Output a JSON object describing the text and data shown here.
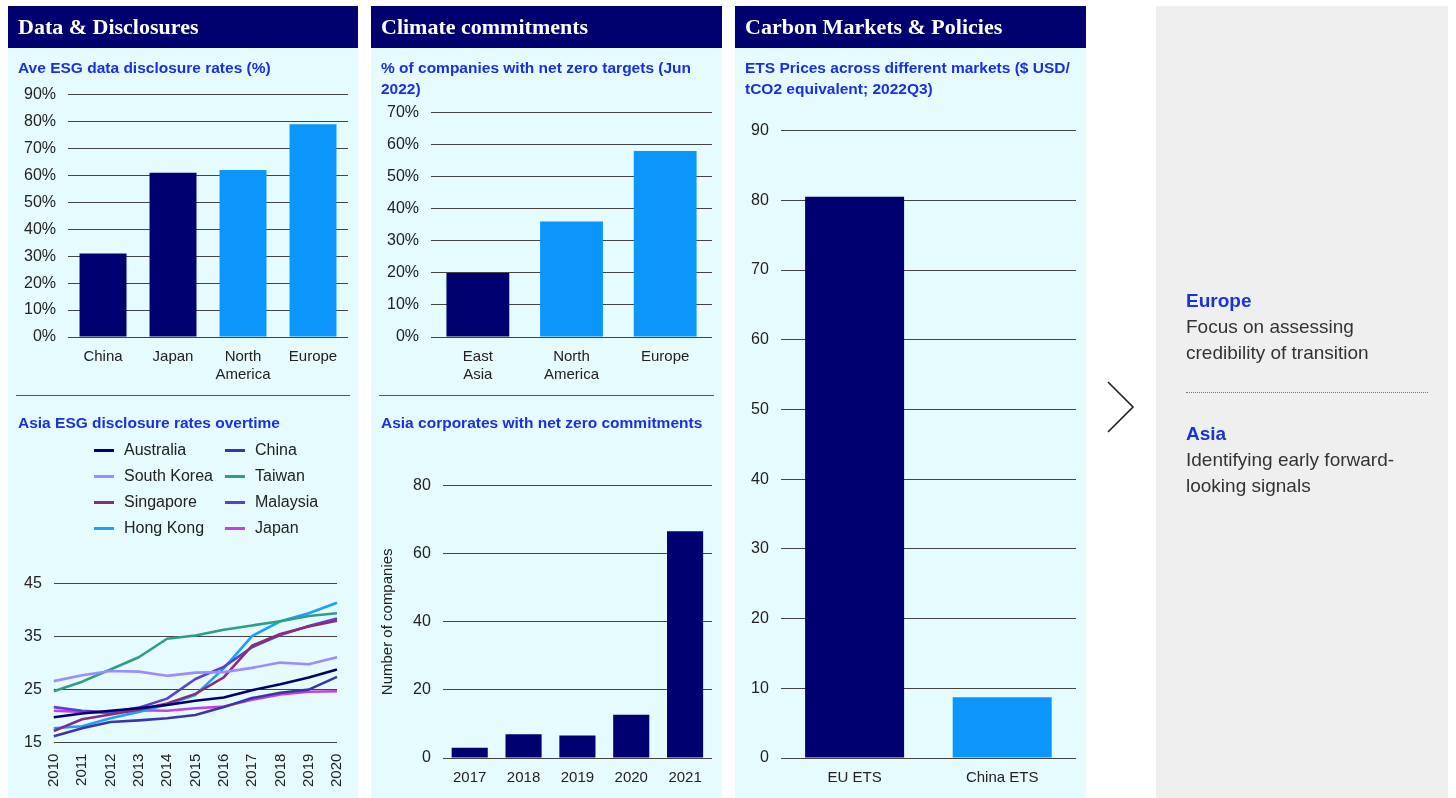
{
  "chart_data": [
    {
      "type": "bar",
      "title": "Data & Disclosures",
      "subtitle": "Ave ESG data disclosure rates (%)",
      "categories": [
        "China",
        "Japan",
        "North America",
        "Europe"
      ],
      "values": [
        31,
        61,
        62,
        79
      ],
      "colors": [
        "#000070",
        "#000070",
        "#0a96fa",
        "#0a96fa"
      ],
      "ylim": [
        0,
        90
      ],
      "yticks": [
        {
          "value": 0,
          "label": "0%"
        },
        {
          "value": 10,
          "label": "10%"
        },
        {
          "value": 20,
          "label": "20%"
        },
        {
          "value": 30,
          "label": "30%"
        },
        {
          "value": 40,
          "label": "40%"
        },
        {
          "value": 50,
          "label": "50%"
        },
        {
          "value": 60,
          "label": "60%"
        },
        {
          "value": 70,
          "label": "70%"
        },
        {
          "value": 80,
          "label": "80%"
        },
        {
          "value": 90,
          "label": "90%"
        }
      ],
      "grid": "y"
    },
    {
      "type": "line",
      "title": "Asia ESG disclosure rates overtime",
      "categories": [
        "2010",
        "2011",
        "2012",
        "2013",
        "2014",
        "2015",
        "2016",
        "2017",
        "2018",
        "2019",
        "2020"
      ],
      "series": [
        {
          "name": "Australia",
          "color": "#00006a",
          "values": [
            19.8,
            20.5,
            21.0,
            21.5,
            22.1,
            22.9,
            23.5,
            24.9,
            26.0,
            27.3,
            28.8
          ]
        },
        {
          "name": "China",
          "color": "#3b36a8",
          "values": [
            16.2,
            17.7,
            18.9,
            19.2,
            19.6,
            20.2,
            21.7,
            23.4,
            24.4,
            25.0,
            27.4
          ]
        },
        {
          "name": "South Korea",
          "color": "#9d8cff",
          "values": [
            26.6,
            27.7,
            28.5,
            28.4,
            27.6,
            28.2,
            28.3,
            29.1,
            30.1,
            29.8,
            31.1
          ]
        },
        {
          "name": "Taiwan",
          "color": "#2e9e84",
          "values": [
            24.7,
            26.5,
            28.8,
            31.1,
            34.6,
            35.2,
            36.3,
            37.1,
            37.9,
            38.9,
            39.4
          ]
        },
        {
          "name": "Singapore",
          "color": "#8a2c7c",
          "values": [
            17.2,
            19.4,
            20.3,
            21.2,
            22.4,
            24.2,
            27.3,
            33.3,
            35.5,
            36.9,
            38.0
          ]
        },
        {
          "name": "Malaysia",
          "color": "#5a40cc",
          "values": [
            21.7,
            21.0,
            20.7,
            21.6,
            23.3,
            27.0,
            29.3,
            33.0,
            35.3,
            37.0,
            38.4
          ]
        },
        {
          "name": "Hong Kong",
          "color": "#1aa0ff",
          "values": [
            17.7,
            18.1,
            19.6,
            20.8,
            22.2,
            24.0,
            29.0,
            35.1,
            37.9,
            39.4,
            41.4
          ]
        },
        {
          "name": "Japan",
          "color": "#c43fe6",
          "values": [
            21.0,
            20.8,
            20.6,
            21.1,
            21.0,
            21.5,
            21.8,
            23.1,
            24.1,
            24.6,
            24.7
          ]
        }
      ],
      "ylim": [
        15,
        45
      ],
      "yticks": [
        15,
        25,
        35,
        45
      ],
      "grid": "y",
      "legend": "top"
    },
    {
      "type": "bar",
      "title": "Climate commitments",
      "subtitle": "% of companies with net zero targets (Jun 2022)",
      "categories": [
        "East Asia",
        "North America",
        "Europe"
      ],
      "values": [
        20,
        36,
        58
      ],
      "colors": [
        "#000070",
        "#0a96fa",
        "#0a96fa"
      ],
      "ylim": [
        0,
        70
      ],
      "yticks": [
        {
          "value": 0,
          "label": "0%"
        },
        {
          "value": 10,
          "label": "10%"
        },
        {
          "value": 20,
          "label": "20%"
        },
        {
          "value": 30,
          "label": "30%"
        },
        {
          "value": 40,
          "label": "40%"
        },
        {
          "value": 50,
          "label": "50%"
        },
        {
          "value": 60,
          "label": "60%"
        },
        {
          "value": 70,
          "label": "70%"
        }
      ],
      "grid": "y"
    },
    {
      "type": "bar",
      "title": "Asia corporates with net zero commitments",
      "ylabel": "Number of companies",
      "categories": [
        "2017",
        "2018",
        "2019",
        "2020",
        "2021"
      ],
      "values": [
        3,
        7,
        6.6,
        12.7,
        66.6
      ],
      "colors": [
        "#000070",
        "#000070",
        "#000070",
        "#000070",
        "#000070"
      ],
      "ylim": [
        0,
        80
      ],
      "yticks": [
        0,
        20,
        40,
        60,
        80
      ],
      "grid": "y"
    },
    {
      "type": "bar",
      "title": "Carbon Markets & Policies",
      "subtitle": "ETS Prices across different markets ($ USD/ tCO2 equivalent; 2022Q3)",
      "categories": [
        "EU ETS",
        "China ETS"
      ],
      "values": [
        80.5,
        8.7
      ],
      "colors": [
        "#000070",
        "#0a96fa"
      ],
      "ylim": [
        0,
        90
      ],
      "yticks": [
        0,
        10,
        20,
        30,
        40,
        50,
        60,
        70,
        80,
        90
      ],
      "grid": "y"
    },
    {
      "type": "other",
      "annotations": [
        "Europe",
        "Focus on assessing credibility of transition",
        "Asia",
        "Identifying early forward-looking signals"
      ]
    }
  ]
}
